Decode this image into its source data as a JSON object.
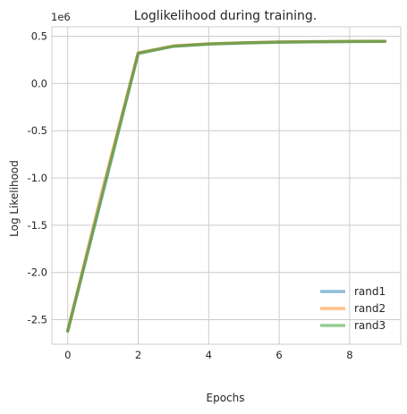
{
  "chart_data": {
    "type": "line",
    "title": "Loglikelihood during training.",
    "xlabel": "Epochs",
    "ylabel": "Log Likelihood",
    "y_multiplier_label": "1e6",
    "xlim": [
      -0.45,
      9.45
    ],
    "ylim": [
      -2.76,
      0.6
    ],
    "xticks": [
      0,
      2,
      4,
      6,
      8
    ],
    "xtick_labels": [
      "0",
      "2",
      "4",
      "6",
      "8"
    ],
    "yticks": [
      0.5,
      0.0,
      -0.5,
      -1.0,
      -1.5,
      -2.0,
      -2.5
    ],
    "ytick_labels": [
      "0.5",
      "0.0",
      "-0.5",
      "-1.0",
      "-1.5",
      "-2.0",
      "-2.5"
    ],
    "grid": true,
    "legend_position": "bottom-right",
    "x": [
      0,
      1,
      2,
      3,
      4,
      5,
      6,
      7,
      8,
      9
    ],
    "series": [
      {
        "name": "rand1",
        "color": "#1f77b4",
        "values": [
          -2.62,
          -1.15,
          0.32,
          0.395,
          0.418,
          0.43,
          0.438,
          0.442,
          0.445,
          0.447
        ]
      },
      {
        "name": "rand2",
        "color": "#ff7f0e",
        "values": [
          -2.62,
          -1.1,
          0.325,
          0.398,
          0.42,
          0.432,
          0.44,
          0.444,
          0.446,
          0.448
        ]
      },
      {
        "name": "rand3",
        "color": "#2ca02c",
        "values": [
          -2.62,
          -1.15,
          0.32,
          0.395,
          0.418,
          0.43,
          0.438,
          0.442,
          0.445,
          0.447
        ]
      }
    ]
  }
}
